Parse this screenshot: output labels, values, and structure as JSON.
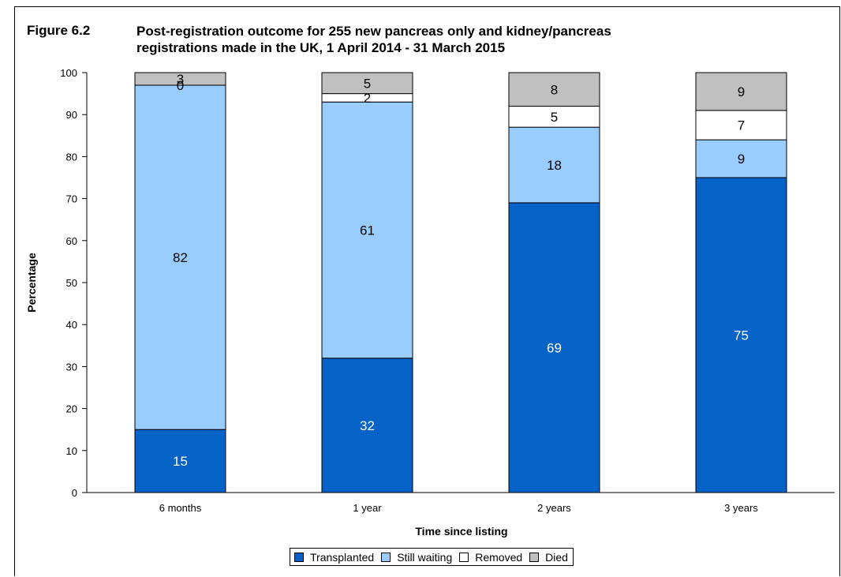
{
  "figure": {
    "label": "Figure 6.2",
    "title": "Post-registration outcome for 255 new pancreas only and kidney/pancreas\nregistrations made in the UK, 1 April 2014 - 31 March 2015"
  },
  "colors": {
    "Transplanted": "#0563c8",
    "Still waiting": "#99ccff",
    "Removed": "#ffffff",
    "Died": "#c0c0c0"
  },
  "chart_data": {
    "type": "bar",
    "stacked": true,
    "categories": [
      "6 months",
      "1 year",
      "2 years",
      "3 years"
    ],
    "series": [
      {
        "name": "Transplanted",
        "values": [
          15,
          32,
          69,
          75
        ]
      },
      {
        "name": "Still waiting",
        "values": [
          82,
          61,
          18,
          9
        ]
      },
      {
        "name": "Removed",
        "values": [
          0,
          2,
          5,
          7
        ]
      },
      {
        "name": "Died",
        "values": [
          3,
          5,
          8,
          9
        ]
      }
    ],
    "xlabel": "Time since listing",
    "ylabel": "Percentage",
    "ylim": [
      0,
      100
    ],
    "yticks": [
      0,
      10,
      20,
      30,
      40,
      50,
      60,
      70,
      80,
      90,
      100
    ],
    "grid": false,
    "legend_position": "bottom"
  }
}
